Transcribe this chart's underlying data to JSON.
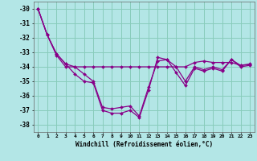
{
  "xlabel": "Windchill (Refroidissement éolien,°C)",
  "background_color": "#b3e6e6",
  "grid_color": "#88ccbb",
  "line_color": "#880088",
  "xlim": [
    -0.5,
    23.5
  ],
  "ylim": [
    -38.5,
    -29.5
  ],
  "xticks": [
    0,
    1,
    2,
    3,
    4,
    5,
    6,
    7,
    8,
    9,
    10,
    11,
    12,
    13,
    14,
    15,
    16,
    17,
    18,
    19,
    20,
    21,
    22,
    23
  ],
  "yticks": [
    -30,
    -31,
    -32,
    -33,
    -34,
    -35,
    -36,
    -37,
    -38
  ],
  "series1": [
    -30.0,
    -31.8,
    -33.1,
    -33.8,
    -34.5,
    -35.0,
    -35.1,
    -37.0,
    -37.2,
    -37.2,
    -37.0,
    -37.5,
    -35.6,
    -33.35,
    -33.5,
    -34.4,
    -35.3,
    -34.1,
    -34.3,
    -34.1,
    -34.3,
    -33.5,
    -34.0,
    -33.9
  ],
  "series2": [
    -30.0,
    -31.8,
    -33.1,
    -33.8,
    -34.0,
    -34.5,
    -35.0,
    -36.8,
    -36.9,
    -36.8,
    -36.7,
    -37.4,
    -35.4,
    -33.6,
    -33.5,
    -34.0,
    -35.0,
    -34.0,
    -34.2,
    -34.0,
    -34.2,
    -33.5,
    -33.9,
    -33.8
  ],
  "series3": [
    -30.0,
    -31.8,
    -33.2,
    -34.0,
    -34.0,
    -34.0,
    -34.0,
    -34.0,
    -34.0,
    -34.0,
    -34.0,
    -34.0,
    -34.0,
    -34.0,
    -34.0,
    -34.0,
    -34.0,
    -33.7,
    -33.6,
    -33.7,
    -33.7,
    -33.7,
    -33.9,
    -33.85
  ]
}
